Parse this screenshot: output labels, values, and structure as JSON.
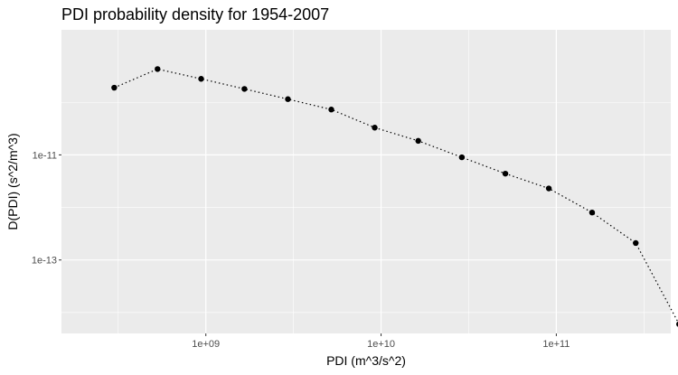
{
  "chart_data": {
    "type": "scatter",
    "title": "PDI probability density for 1954-2007",
    "xlabel": "PDI (m^3/s^2)",
    "ylabel": "D(PDI) (s^2/m^3)",
    "x_scale": "log",
    "y_scale": "log",
    "xlim": [
      150000000,
      450000000000
    ],
    "ylim": [
      4e-15,
      2.4e-09
    ],
    "x_ticks": [
      {
        "value": 1000000000,
        "label": "1e+09"
      },
      {
        "value": 10000000000,
        "label": "1e+10"
      },
      {
        "value": 100000000000,
        "label": "1e+11"
      }
    ],
    "y_ticks": [
      {
        "value": 1e-11,
        "label": "1e-11"
      },
      {
        "value": 1e-13,
        "label": "1e-13"
      }
    ],
    "grid": true,
    "line_style": "dotted",
    "marker_color": "#000000",
    "panel_color": "#ebebeb",
    "grid_color": "#ffffff",
    "points": [
      {
        "x": 300000000,
        "y": 1.9e-10
      },
      {
        "x": 530000000,
        "y": 4.3e-10
      },
      {
        "x": 940000000,
        "y": 2.8e-10
      },
      {
        "x": 1660000000,
        "y": 1.8e-10
      },
      {
        "x": 2940000000,
        "y": 1.15e-10
      },
      {
        "x": 5200000000,
        "y": 7.3e-11
      },
      {
        "x": 9200000000,
        "y": 3.3e-11
      },
      {
        "x": 16300000000,
        "y": 1.85e-11
      },
      {
        "x": 28900000000,
        "y": 9e-12
      },
      {
        "x": 51200000000,
        "y": 4.4e-12
      },
      {
        "x": 90600000000,
        "y": 2.3e-12
      },
      {
        "x": 160000000000,
        "y": 8e-13
      },
      {
        "x": 284000000000,
        "y": 2.1e-13
      },
      {
        "x": 502000000000,
        "y": 6e-15
      }
    ]
  }
}
